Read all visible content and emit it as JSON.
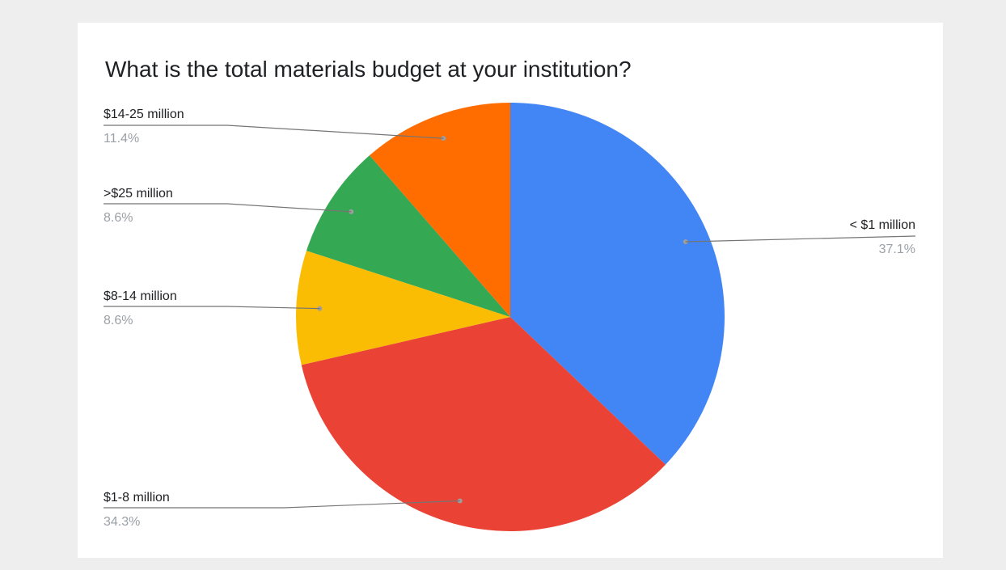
{
  "chart_data": {
    "type": "pie",
    "title": "What is the total materials budget at your institution?",
    "slices": [
      {
        "label": "< $1 million",
        "value": 37.1,
        "pct_label": "37.1%",
        "color": "#4285f4"
      },
      {
        "label": "$1-8 million",
        "value": 34.3,
        "pct_label": "34.3%",
        "color": "#ea4335"
      },
      {
        "label": "$8-14 million",
        "value": 8.6,
        "pct_label": "8.6%",
        "color": "#fbbc04"
      },
      {
        "label": ">$25 million",
        "value": 8.6,
        "pct_label": "8.6%",
        "color": "#34a853"
      },
      {
        "label": "$14-25 million",
        "value": 11.4,
        "pct_label": "11.4%",
        "color": "#ff6d01"
      }
    ],
    "legend": "none",
    "label_style": "leader-lines"
  }
}
